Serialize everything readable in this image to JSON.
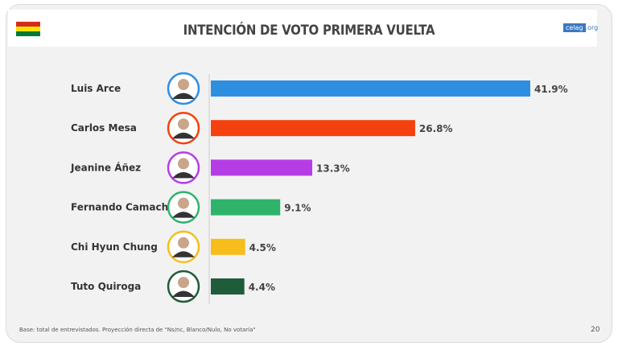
{
  "header": {
    "title": "INTENCIÓN DE VOTO PRIMERA VUELTA",
    "logo_main": "celag",
    "logo_suffix": ".org",
    "flag_colors": [
      "#d52b1e",
      "#f9e300",
      "#007934"
    ]
  },
  "footer": {
    "note": "Base: total de entrevistados. Proyección directa de \"Ns/nc, Blanco/Nulo, No votaría\"",
    "page_number": "20"
  },
  "chart_data": {
    "type": "bar",
    "orientation": "horizontal",
    "title": "INTENCIÓN DE VOTO PRIMERA VUELTA",
    "categories": [
      "Luis Arce",
      "Carlos Mesa",
      "Jeanine Áñez",
      "Fernando Camacho",
      "Chi Hyun Chung",
      "Tuto Quiroga"
    ],
    "values": [
      41.9,
      26.8,
      13.3,
      9.1,
      4.5,
      4.4
    ],
    "labels": [
      "41.9%",
      "26.8%",
      "13.3%",
      "9.1%",
      "4.5%",
      "4.4%"
    ],
    "colors": [
      "#2e8fe0",
      "#f4410f",
      "#b63de6",
      "#2fb36b",
      "#f7bd1b",
      "#1f5d3a"
    ],
    "unit": "%",
    "grid": false,
    "legend": "none",
    "avatars": true
  }
}
